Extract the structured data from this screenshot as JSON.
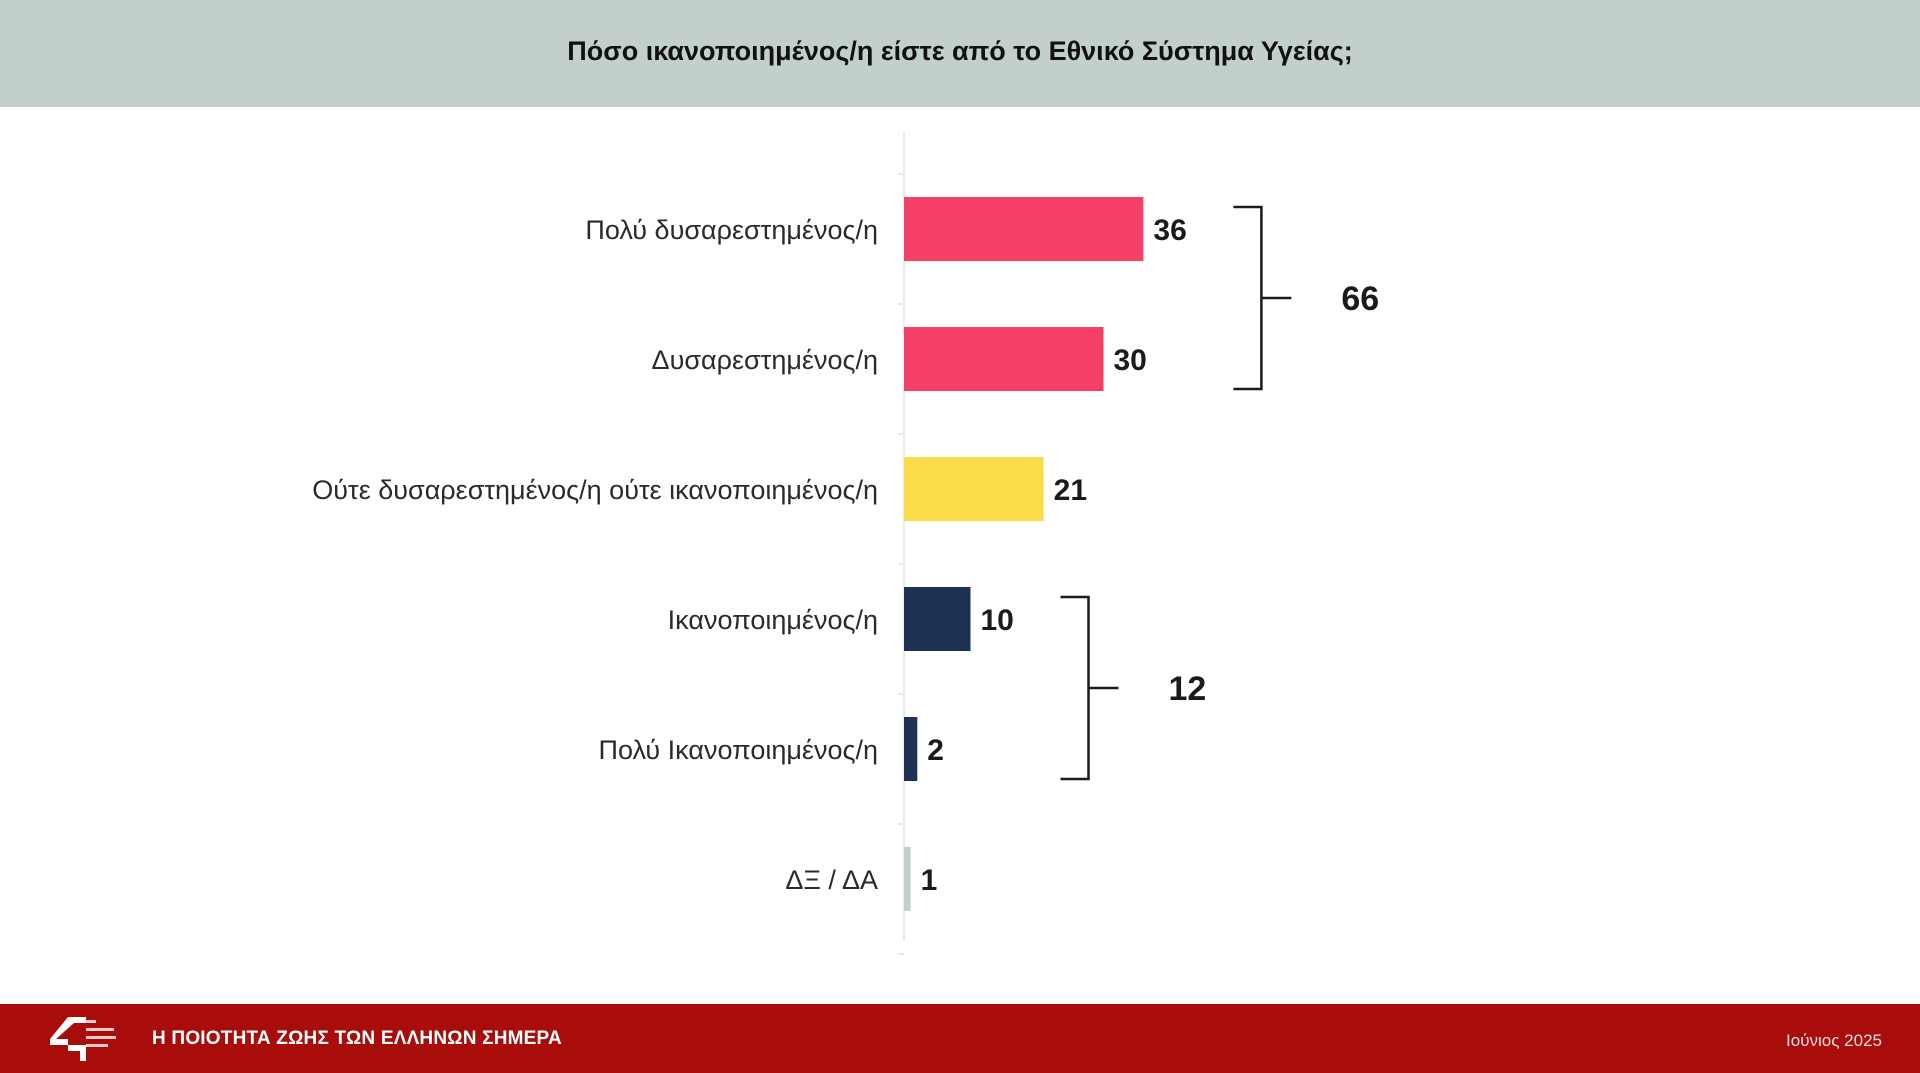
{
  "header": {
    "title": "Πόσο ικανοποιημένος/η είστε από το Εθνικό Σύστημα Υγείας;"
  },
  "chart_data": {
    "type": "bar",
    "orientation": "horizontal",
    "categories": [
      "Πολύ δυσαρεστημένος/η",
      "Δυσαρεστημένος/η",
      "Ούτε δυσαρεστημένος/η ούτε ικανοποιημένος/η",
      "Ικανοποιημένος/η",
      "Πολύ Ικανοποιημένος/η",
      "ΔΞ / ΔΑ"
    ],
    "values": [
      36,
      30,
      21,
      10,
      2,
      1
    ],
    "colors": [
      "#f43f67",
      "#f43f67",
      "#fadb4a",
      "#1e3354",
      "#1e3354",
      "#c2cfcb"
    ],
    "groups": [
      {
        "value": "66",
        "from": 0,
        "to": 1
      },
      {
        "value": "12",
        "from": 3,
        "to": 4
      }
    ]
  },
  "footer": {
    "title": "Η ΠΟΙΟΤΗΤΑ ΖΩΗΣ ΤΩΝ ΕΛΛΗΝΩΝ ΣΗΜΕΡΑ",
    "date": "Ιούνιος 2025",
    "logo_icon": "brand-logo-icon"
  }
}
